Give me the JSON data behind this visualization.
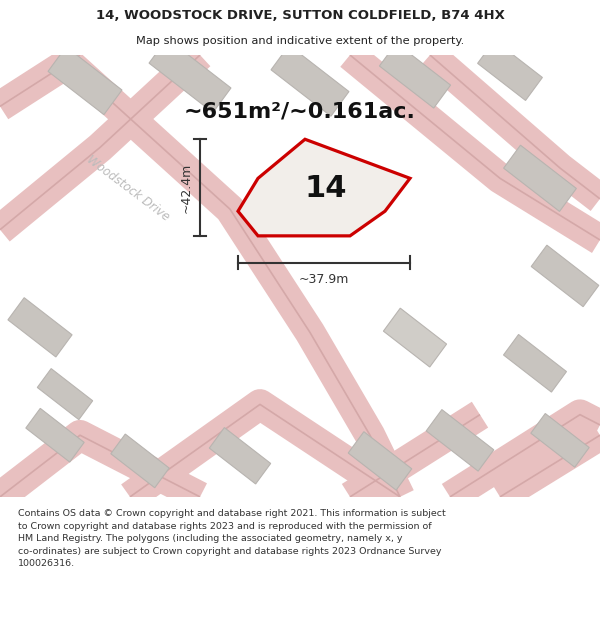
{
  "title_line1": "14, WOODSTOCK DRIVE, SUTTON COLDFIELD, B74 4HX",
  "title_line2": "Map shows position and indicative extent of the property.",
  "area_text": "~651m²/~0.161ac.",
  "number_label": "14",
  "dim_height": "~42.4m",
  "dim_width": "~37.9m",
  "road_label": "Woodstock Drive",
  "footer": "Contains OS data © Crown copyright and database right 2021. This information is subject\nto Crown copyright and database rights 2023 and is reproduced with the permission of\nHM Land Registry. The polygons (including the associated geometry, namely x, y\nco-ordinates) are subject to Crown copyright and database rights 2023 Ordnance Survey\n100026316.",
  "bg_color": "#f5f5f5",
  "map_bg": "#edeae5",
  "plot_border_color": "#cc0000",
  "dim_line_color": "#333333",
  "title_color": "#222222",
  "footer_color": "#333333"
}
